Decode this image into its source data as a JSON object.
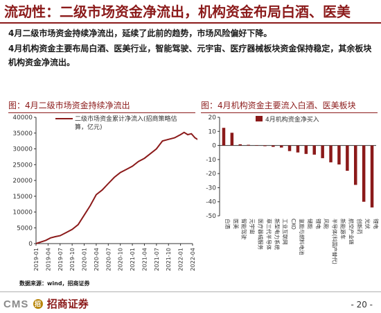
{
  "slide": {
    "title": "流动性：二级市场资金净流出，机构资金布局白酒、医美",
    "bullets": [
      "4月二级市场资金持续净流出，延续了此前的趋势，市场风险偏好下降。",
      "4月机构资金主要布局白酒、医美行业，智能驾驶、元宇宙、医疗器械板块资金保持稳定，其余板块机构资金净流出。"
    ],
    "source": "数据来源：wind，招商证券",
    "footer": {
      "logo_text": "CMS",
      "logo_badge": "招",
      "logo_cn": "招商证券",
      "page": "- 20 -"
    }
  },
  "colors": {
    "accent": "#8b1a1a",
    "bar": "#8b1a1a",
    "line": "#8b1a1a"
  },
  "chart_data": [
    {
      "type": "line",
      "title": "图：4月二级市场资金持续净流出",
      "series": [
        {
          "name": "二级市场资金累计净流入(招商策略估算，亿元)"
        }
      ],
      "legend_line1": "二级市场资金累计净流入(招商策略估",
      "legend_line2": "算，亿元)",
      "ylim": [
        0,
        40000
      ],
      "yticks": [
        "0",
        "5000",
        "10000",
        "15000",
        "20000",
        "25000",
        "30000",
        "35000",
        "40000"
      ],
      "xticks": [
        "2019-01",
        "2019-04",
        "2019-07",
        "2019-10",
        "2020-01",
        "2020-04",
        "2020-07",
        "2020-10",
        "2021-01",
        "2021-04",
        "2021-07",
        "2021-10",
        "2022-01",
        "2022-04"
      ],
      "x": [
        0,
        0.4,
        0.8,
        1.2,
        1.6,
        2,
        2.5,
        3,
        3.5,
        4,
        4.5,
        5,
        5.5,
        6,
        6.5,
        7,
        7.5,
        8,
        8.5,
        9,
        9.5,
        10,
        10.5,
        11,
        11.5,
        12,
        12.3,
        12.6,
        12.9,
        13.2,
        13.5
      ],
      "values": [
        0,
        500,
        1000,
        1800,
        2200,
        2500,
        3500,
        4500,
        6000,
        9000,
        12000,
        15500,
        17000,
        19000,
        21000,
        22500,
        23500,
        24500,
        26000,
        27000,
        28500,
        30000,
        32500,
        33000,
        33500,
        34500,
        35200,
        34500,
        34800,
        33500,
        32800
      ]
    },
    {
      "type": "bar",
      "title": "图：4月机构资金主要流入白酒、医美板块",
      "series": [
        {
          "name": "4月机构资金净买入"
        }
      ],
      "categories": [
        "白酒",
        "医美",
        "智能驾驶",
        "元宇宙",
        "医疗器械服务",
        "草三代半导体",
        "新型电力系统",
        "工业互联网",
        "CXO",
        "氢能与燃料电池",
        "储能",
        "锂电",
        "风能",
        "半导体(科国产替代)",
        "新能源车",
        "航空产业链",
        "创新药",
        "光伏",
        "锂电"
      ],
      "values": [
        12.5,
        9,
        0.8,
        0.5,
        0.3,
        -0.5,
        -1,
        -1.5,
        -4,
        -5,
        -6,
        -6.5,
        -9,
        -12,
        -13.5,
        -18,
        -28,
        -40,
        -44
      ],
      "ylim": [
        -50,
        20
      ],
      "yticks": [
        "-50",
        "-40",
        "-30",
        "-20",
        "-10",
        "0",
        "10",
        "20"
      ]
    }
  ]
}
